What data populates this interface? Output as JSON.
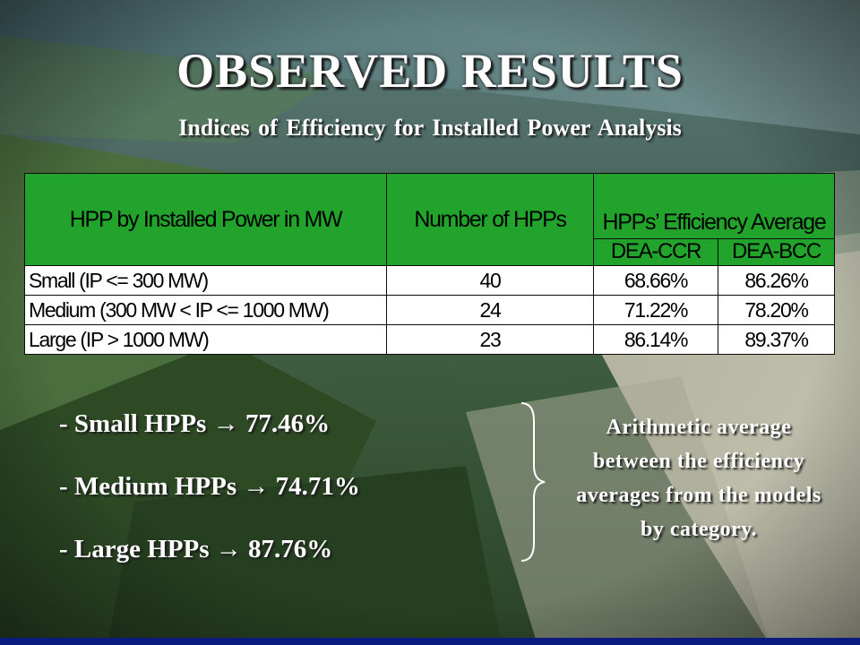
{
  "title": "OBSERVED RESULTS",
  "subtitle": "Indices of Efficiency for Installed Power Analysis",
  "table": {
    "header": {
      "category": "HPP by Installed Power in MW",
      "count": "Number of HPPs",
      "efficiency": "HPPs’ Efficiency Average",
      "ccr": "DEA-CCR",
      "bcc": "DEA-BCC"
    },
    "rows": [
      {
        "category": "Small (IP <= 300 MW)",
        "count": "40",
        "ccr": "68.66%",
        "bcc": "86.26%"
      },
      {
        "category": "Medium (300 MW < IP <= 1000 MW)",
        "count": "24",
        "ccr": "71.22%",
        "bcc": "78.20%"
      },
      {
        "category": "Large (IP > 1000 MW)",
        "count": "23",
        "ccr": "86.14%",
        "bcc": "89.37%"
      }
    ]
  },
  "bullets": [
    "- Small HPPs → 77.46%",
    "- Medium HPPs → 74.71%",
    "- Large HPPs → 87.76%"
  ],
  "note": "Arithmetic average between the efficiency averages from the models by category.",
  "colors": {
    "header_green": "#21a32c",
    "title_white": "#ffffff",
    "bottom_bar": "#0b1a7e"
  }
}
